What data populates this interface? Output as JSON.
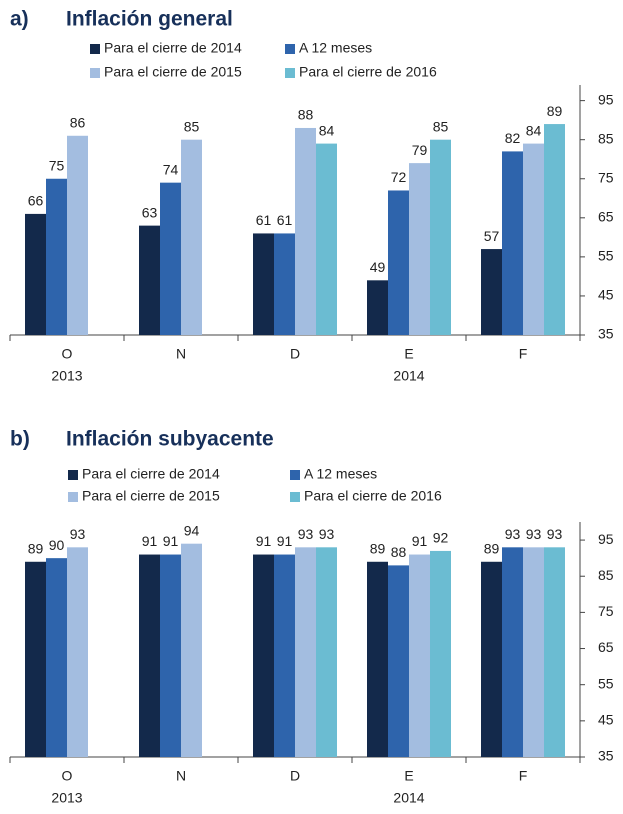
{
  "chart_data": [
    {
      "type": "bar",
      "label": "a)",
      "title": "Inflación general",
      "categories": [
        "O",
        "N",
        "D",
        "E",
        "F"
      ],
      "year_labels": [
        "2013",
        null,
        null,
        "2014",
        null
      ],
      "series": [
        {
          "name": "Para el cierre de 2014",
          "color": "#13294b",
          "values": [
            66,
            63,
            61,
            49,
            57
          ]
        },
        {
          "name": "A 12 meses",
          "color": "#2e64ac",
          "values": [
            75,
            74,
            61,
            72,
            82
          ]
        },
        {
          "name": "Para el cierre de 2015",
          "color": "#a3bde0",
          "values": [
            86,
            85,
            88,
            79,
            84
          ]
        },
        {
          "name": "Para el cierre de 2016",
          "color": "#6bbcd2",
          "values": [
            null,
            null,
            84,
            85,
            89
          ]
        }
      ],
      "ylim": [
        35,
        99
      ],
      "yticks": [
        35,
        45,
        55,
        65,
        75,
        85,
        95
      ]
    },
    {
      "type": "bar",
      "label": "b)",
      "title": "Inflación subyacente",
      "categories": [
        "O",
        "N",
        "D",
        "E",
        "F"
      ],
      "year_labels": [
        "2013",
        null,
        null,
        "2014",
        null
      ],
      "series": [
        {
          "name": "Para el cierre de 2014",
          "color": "#13294b",
          "values": [
            89,
            91,
            91,
            89,
            89
          ]
        },
        {
          "name": "A 12 meses",
          "color": "#2e64ac",
          "values": [
            90,
            91,
            91,
            88,
            93
          ]
        },
        {
          "name": "Para el cierre de 2015",
          "color": "#a3bde0",
          "values": [
            93,
            94,
            93,
            91,
            93
          ]
        },
        {
          "name": "Para el cierre de 2016",
          "color": "#6bbcd2",
          "values": [
            null,
            null,
            93,
            92,
            93
          ]
        }
      ],
      "ylim": [
        35,
        100
      ],
      "yticks": [
        35,
        45,
        55,
        65,
        75,
        85,
        95
      ]
    }
  ]
}
